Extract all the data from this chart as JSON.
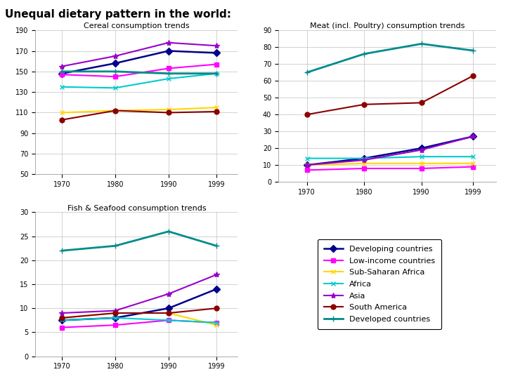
{
  "title": "Unequal dietary pattern in the world:",
  "years": [
    1970,
    1980,
    1990,
    1999
  ],
  "series": [
    {
      "name": "Developing countries",
      "color": "#00008B",
      "marker": "D",
      "lw": 1.8,
      "ms": 5
    },
    {
      "name": "Low-income countries",
      "color": "#FF00FF",
      "marker": "s",
      "lw": 1.5,
      "ms": 5
    },
    {
      "name": "Sub-Saharan Africa",
      "color": "#FFD700",
      "marker": "x",
      "lw": 1.5,
      "ms": 5
    },
    {
      "name": "Africa",
      "color": "#00CCCC",
      "marker": "x",
      "lw": 1.5,
      "ms": 5
    },
    {
      "name": "Asia",
      "color": "#9900CC",
      "marker": "*",
      "lw": 1.5,
      "ms": 6
    },
    {
      "name": "South America",
      "color": "#8B0000",
      "marker": "o",
      "lw": 1.5,
      "ms": 5
    },
    {
      "name": "Developed countries",
      "color": "#008B8B",
      "marker": "+",
      "lw": 2.0,
      "ms": 6
    }
  ],
  "cereal": {
    "title": "Cereal consumption trends",
    "ylim": [
      50,
      190
    ],
    "yticks": [
      50,
      70,
      90,
      110,
      130,
      150,
      170,
      190
    ],
    "data": [
      [
        148,
        158,
        170,
        168
      ],
      [
        147,
        145,
        153,
        157
      ],
      [
        110,
        112,
        113,
        115
      ],
      [
        135,
        134,
        143,
        148
      ],
      [
        155,
        165,
        178,
        175
      ],
      [
        103,
        112,
        110,
        111
      ],
      [
        150,
        150,
        148,
        148
      ]
    ]
  },
  "meat": {
    "title": "Meat (incl. Poultry) consumption trends",
    "ylim": [
      0,
      90
    ],
    "yticks": [
      0,
      10,
      20,
      30,
      40,
      50,
      60,
      70,
      80,
      90
    ],
    "data": [
      [
        10,
        14,
        20,
        27
      ],
      [
        7,
        8,
        8,
        9
      ],
      [
        10,
        11,
        11,
        11
      ],
      [
        14,
        14,
        15,
        15
      ],
      [
        10,
        13,
        19,
        27
      ],
      [
        40,
        46,
        47,
        63
      ],
      [
        65,
        76,
        82,
        78
      ]
    ]
  },
  "fish": {
    "title": "Fish & Seafood consumption trends",
    "ylim": [
      0,
      30
    ],
    "yticks": [
      0,
      5,
      10,
      15,
      20,
      25,
      30
    ],
    "data": [
      [
        7.5,
        8,
        10,
        14
      ],
      [
        6,
        6.5,
        7.5,
        7
      ],
      [
        8,
        9,
        9,
        6.5
      ],
      [
        7.5,
        8,
        7.5,
        7
      ],
      [
        9,
        9.5,
        13,
        17
      ],
      [
        8,
        9,
        9,
        10
      ],
      [
        22,
        23,
        26,
        23
      ]
    ]
  },
  "bg_color": "#ffffff",
  "grid_color": "#c0c0c0",
  "title_fontsize": 11,
  "subtitle_fontsize": 8,
  "tick_fontsize": 7,
  "legend_fontsize": 8
}
